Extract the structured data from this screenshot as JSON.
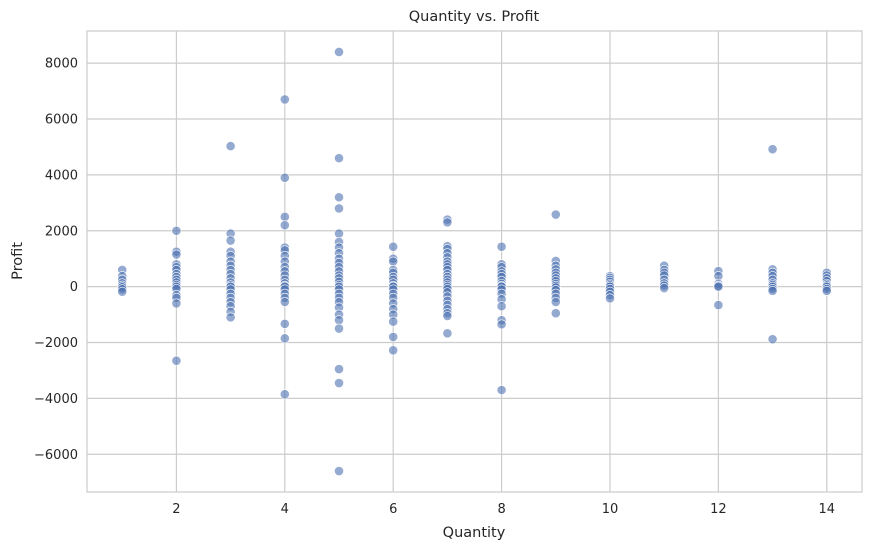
{
  "chart_data": {
    "type": "scatter",
    "title": "Quantity vs. Profit",
    "xlabel": "Quantity",
    "ylabel": "Profit",
    "xlim": [
      0.35,
      14.65
    ],
    "ylim": [
      -7350,
      9150
    ],
    "xticks": [
      2,
      4,
      6,
      8,
      10,
      12,
      14
    ],
    "yticks": [
      -6000,
      -4000,
      -2000,
      0,
      2000,
      4000,
      6000,
      8000
    ],
    "grid": true,
    "point_color": "#4c72b0",
    "series": [
      {
        "points": [
          [
            1,
            600
          ],
          [
            1,
            380
          ],
          [
            1,
            250
          ],
          [
            1,
            120
          ],
          [
            1,
            40
          ],
          [
            1,
            -20
          ],
          [
            1,
            -90
          ],
          [
            1,
            -180
          ],
          [
            2,
            2000
          ],
          [
            2,
            1250
          ],
          [
            2,
            1150
          ],
          [
            2,
            800
          ],
          [
            2,
            700
          ],
          [
            2,
            600
          ],
          [
            2,
            450
          ],
          [
            2,
            350
          ],
          [
            2,
            250
          ],
          [
            2,
            150
          ],
          [
            2,
            60
          ],
          [
            2,
            0
          ],
          [
            2,
            -80
          ],
          [
            2,
            -300
          ],
          [
            2,
            -400
          ],
          [
            2,
            -600
          ],
          [
            2,
            -2650
          ],
          [
            3,
            5030
          ],
          [
            3,
            1900
          ],
          [
            3,
            1650
          ],
          [
            3,
            1250
          ],
          [
            3,
            1100
          ],
          [
            3,
            900
          ],
          [
            3,
            750
          ],
          [
            3,
            600
          ],
          [
            3,
            450
          ],
          [
            3,
            300
          ],
          [
            3,
            150
          ],
          [
            3,
            50
          ],
          [
            3,
            0
          ],
          [
            3,
            -100
          ],
          [
            3,
            -250
          ],
          [
            3,
            -400
          ],
          [
            3,
            -550
          ],
          [
            3,
            -700
          ],
          [
            3,
            -900
          ],
          [
            3,
            -1100
          ],
          [
            4,
            6700
          ],
          [
            4,
            3900
          ],
          [
            4,
            2500
          ],
          [
            4,
            2200
          ],
          [
            4,
            1400
          ],
          [
            4,
            1300
          ],
          [
            4,
            1100
          ],
          [
            4,
            900
          ],
          [
            4,
            700
          ],
          [
            4,
            550
          ],
          [
            4,
            400
          ],
          [
            4,
            250
          ],
          [
            4,
            120
          ],
          [
            4,
            30
          ],
          [
            4,
            0
          ],
          [
            4,
            -100
          ],
          [
            4,
            -250
          ],
          [
            4,
            -400
          ],
          [
            4,
            -550
          ],
          [
            4,
            -1330
          ],
          [
            4,
            -1850
          ],
          [
            4,
            -3850
          ],
          [
            5,
            8400
          ],
          [
            5,
            4600
          ],
          [
            5,
            3200
          ],
          [
            5,
            2800
          ],
          [
            5,
            1900
          ],
          [
            5,
            1600
          ],
          [
            5,
            1400
          ],
          [
            5,
            1200
          ],
          [
            5,
            1000
          ],
          [
            5,
            850
          ],
          [
            5,
            700
          ],
          [
            5,
            550
          ],
          [
            5,
            400
          ],
          [
            5,
            300
          ],
          [
            5,
            180
          ],
          [
            5,
            60
          ],
          [
            5,
            0
          ],
          [
            5,
            -100
          ],
          [
            5,
            -250
          ],
          [
            5,
            -400
          ],
          [
            5,
            -550
          ],
          [
            5,
            -750
          ],
          [
            5,
            -1000
          ],
          [
            5,
            -1200
          ],
          [
            5,
            -1500
          ],
          [
            5,
            -2950
          ],
          [
            5,
            -3450
          ],
          [
            5,
            -6600
          ],
          [
            6,
            1430
          ],
          [
            6,
            1000
          ],
          [
            6,
            900
          ],
          [
            6,
            600
          ],
          [
            6,
            500
          ],
          [
            6,
            350
          ],
          [
            6,
            250
          ],
          [
            6,
            120
          ],
          [
            6,
            30
          ],
          [
            6,
            0
          ],
          [
            6,
            -100
          ],
          [
            6,
            -250
          ],
          [
            6,
            -400
          ],
          [
            6,
            -600
          ],
          [
            6,
            -800
          ],
          [
            6,
            -1000
          ],
          [
            6,
            -1250
          ],
          [
            6,
            -1800
          ],
          [
            6,
            -2280
          ],
          [
            7,
            2400
          ],
          [
            7,
            2300
          ],
          [
            7,
            1450
          ],
          [
            7,
            1350
          ],
          [
            7,
            1200
          ],
          [
            7,
            1050
          ],
          [
            7,
            900
          ],
          [
            7,
            800
          ],
          [
            7,
            700
          ],
          [
            7,
            600
          ],
          [
            7,
            450
          ],
          [
            7,
            350
          ],
          [
            7,
            250
          ],
          [
            7,
            150
          ],
          [
            7,
            60
          ],
          [
            7,
            0
          ],
          [
            7,
            -80
          ],
          [
            7,
            -200
          ],
          [
            7,
            -350
          ],
          [
            7,
            -500
          ],
          [
            7,
            -650
          ],
          [
            7,
            -800
          ],
          [
            7,
            -950
          ],
          [
            7,
            -1050
          ],
          [
            7,
            -1670
          ],
          [
            8,
            1430
          ],
          [
            8,
            800
          ],
          [
            8,
            700
          ],
          [
            8,
            550
          ],
          [
            8,
            450
          ],
          [
            8,
            350
          ],
          [
            8,
            200
          ],
          [
            8,
            100
          ],
          [
            8,
            30
          ],
          [
            8,
            0
          ],
          [
            8,
            -100
          ],
          [
            8,
            -250
          ],
          [
            8,
            -450
          ],
          [
            8,
            -700
          ],
          [
            8,
            -1200
          ],
          [
            8,
            -1350
          ],
          [
            8,
            -3700
          ],
          [
            9,
            2580
          ],
          [
            9,
            920
          ],
          [
            9,
            750
          ],
          [
            9,
            620
          ],
          [
            9,
            500
          ],
          [
            9,
            400
          ],
          [
            9,
            300
          ],
          [
            9,
            200
          ],
          [
            9,
            100
          ],
          [
            9,
            30
          ],
          [
            9,
            -30
          ],
          [
            9,
            -120
          ],
          [
            9,
            -250
          ],
          [
            9,
            -400
          ],
          [
            9,
            -550
          ],
          [
            9,
            -950
          ],
          [
            10,
            380
          ],
          [
            10,
            320
          ],
          [
            10,
            250
          ],
          [
            10,
            180
          ],
          [
            10,
            100
          ],
          [
            10,
            50
          ],
          [
            10,
            0
          ],
          [
            10,
            -80
          ],
          [
            10,
            -180
          ],
          [
            10,
            -300
          ],
          [
            10,
            -420
          ],
          [
            11,
            750
          ],
          [
            11,
            600
          ],
          [
            11,
            500
          ],
          [
            11,
            400
          ],
          [
            11,
            250
          ],
          [
            11,
            120
          ],
          [
            11,
            40
          ],
          [
            11,
            -50
          ],
          [
            12,
            560
          ],
          [
            12,
            380
          ],
          [
            12,
            100
          ],
          [
            12,
            30
          ],
          [
            12,
            0
          ],
          [
            12,
            -660
          ],
          [
            13,
            4920
          ],
          [
            13,
            620
          ],
          [
            13,
            500
          ],
          [
            13,
            380
          ],
          [
            13,
            250
          ],
          [
            13,
            120
          ],
          [
            13,
            60
          ],
          [
            13,
            0
          ],
          [
            13,
            -80
          ],
          [
            13,
            -150
          ],
          [
            13,
            -1880
          ],
          [
            14,
            500
          ],
          [
            14,
            400
          ],
          [
            14,
            300
          ],
          [
            14,
            200
          ],
          [
            14,
            100
          ],
          [
            14,
            50
          ],
          [
            14,
            0
          ],
          [
            14,
            -80
          ],
          [
            14,
            -150
          ]
        ]
      }
    ]
  }
}
